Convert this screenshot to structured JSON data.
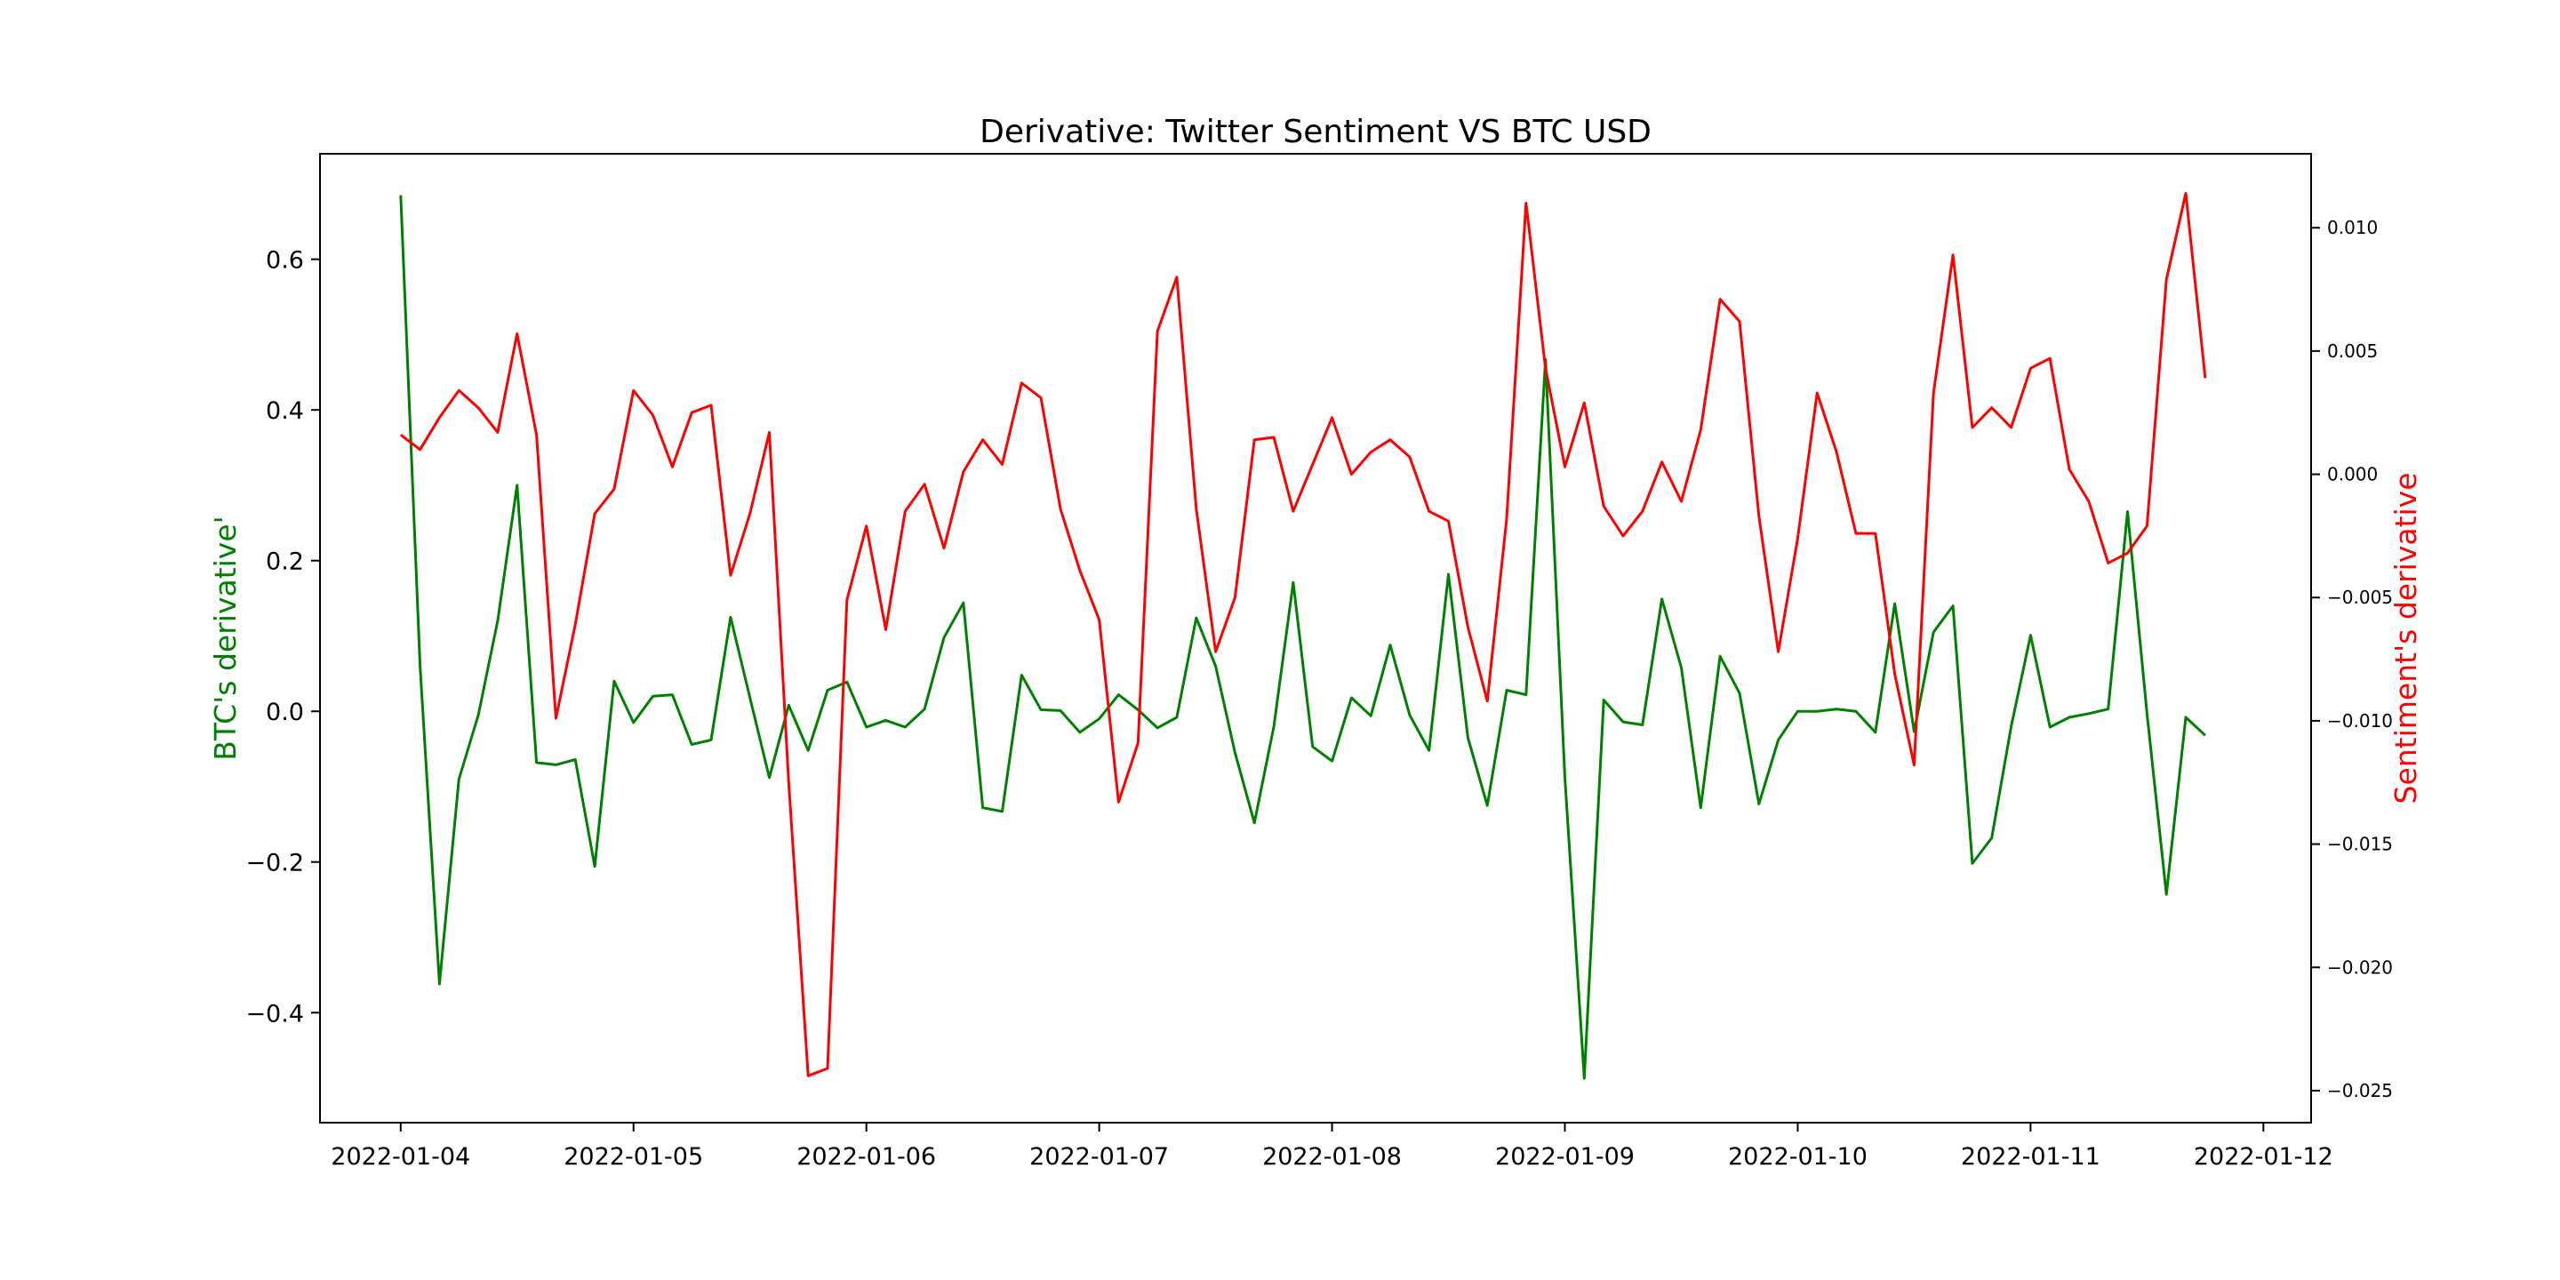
{
  "chart_data": {
    "type": "line",
    "title": "Derivative: Twitter Sentiment VS BTC USD",
    "x_start": "2022-01-04",
    "x_step_hours": 2,
    "x_ticks": [
      "2022-01-04",
      "2022-01-05",
      "2022-01-06",
      "2022-01-07",
      "2022-01-08",
      "2022-01-09",
      "2022-01-10",
      "2022-01-11",
      "2022-01-12"
    ],
    "xlim": [
      "2022-01-03T15:41:00",
      "2022-01-12T04:55:00"
    ],
    "y_left": {
      "label": "BTC's derivative'",
      "color": "#008000",
      "ylim": [
        -0.546,
        0.74
      ],
      "ticks": [
        "−0.4",
        "−0.2",
        "0.0",
        "0.2",
        "0.4",
        "0.6"
      ],
      "tick_values": [
        -0.4,
        -0.2,
        0.0,
        0.2,
        0.4,
        0.6
      ]
    },
    "y_right": {
      "label": "Sentiment's derivative",
      "color": "#ff0000",
      "ylim": [
        -0.0263,
        0.013
      ],
      "ticks": [
        "−0.025",
        "−0.020",
        "−0.015",
        "−0.010",
        "−0.005",
        "0.000",
        "0.005",
        "0.010"
      ],
      "tick_values": [
        -0.025,
        -0.02,
        -0.015,
        -0.01,
        -0.005,
        0.0,
        0.005,
        0.01
      ]
    },
    "series": [
      {
        "name": "BTC's derivative'",
        "axis": "left",
        "color": "#008000",
        "values": [
          0.685,
          0.06,
          -0.362,
          -0.09,
          -0.005,
          0.12,
          0.3,
          -0.068,
          -0.071,
          -0.064,
          -0.206,
          0.04,
          -0.015,
          0.02,
          0.022,
          -0.044,
          -0.038,
          0.125,
          0.018,
          -0.088,
          0.008,
          -0.052,
          0.028,
          0.039,
          -0.021,
          -0.012,
          -0.021,
          0.003,
          0.098,
          0.144,
          -0.128,
          -0.133,
          0.048,
          0.002,
          0.001,
          -0.028,
          -0.01,
          0.022,
          0.002,
          -0.022,
          -0.008,
          0.124,
          0.06,
          -0.055,
          -0.148,
          -0.02,
          0.171,
          -0.047,
          -0.066,
          0.018,
          -0.006,
          0.088,
          -0.005,
          -0.052,
          0.182,
          -0.035,
          -0.125,
          0.028,
          0.022,
          0.467,
          -0.088,
          -0.487,
          0.015,
          -0.014,
          -0.018,
          0.149,
          0.058,
          -0.128,
          0.073,
          0.024,
          -0.123,
          -0.038,
          0.0,
          0.0,
          0.003,
          0.0,
          -0.028,
          0.143,
          -0.027,
          0.105,
          0.14,
          -0.202,
          -0.168,
          -0.02,
          0.101,
          -0.021,
          -0.008,
          -0.003,
          0.003,
          0.265,
          -0.003,
          -0.243,
          -0.008,
          -0.032
        ]
      },
      {
        "name": "Sentiment's derivative",
        "axis": "right",
        "color": "#ff0000",
        "values": [
          0.0016,
          0.001,
          0.0023,
          0.0034,
          0.0027,
          0.0017,
          0.0057,
          0.0016,
          -0.0099,
          -0.0061,
          -0.0016,
          -0.0006,
          0.0034,
          0.0024,
          0.0003,
          0.0025,
          0.0028,
          -0.0041,
          -0.0016,
          0.0017,
          -0.0125,
          -0.0244,
          -0.0241,
          -0.0051,
          -0.0021,
          -0.0063,
          -0.0015,
          -0.0004,
          -0.003,
          0.0001,
          0.0014,
          0.0004,
          0.0037,
          0.0031,
          -0.0014,
          -0.0039,
          -0.0059,
          -0.0133,
          -0.0109,
          0.0058,
          0.008,
          -0.0014,
          -0.0072,
          -0.005,
          0.0014,
          0.0015,
          -0.0015,
          0.0004,
          0.0023,
          0.0,
          0.0009,
          0.0014,
          0.0007,
          -0.0015,
          -0.0019,
          -0.0062,
          -0.0092,
          -0.0018,
          0.011,
          0.0043,
          0.0003,
          0.0029,
          -0.0013,
          -0.0025,
          -0.0015,
          0.0005,
          -0.0011,
          0.0018,
          0.0071,
          0.0062,
          -0.0017,
          -0.0072,
          -0.0026,
          0.0033,
          0.0009,
          -0.0024,
          -0.0024,
          -0.0081,
          -0.0118,
          0.0033,
          0.0089,
          0.0019,
          0.0027,
          0.0019,
          0.0043,
          0.0047,
          0.0002,
          -0.0011,
          -0.0036,
          -0.0032,
          -0.0021,
          0.0079,
          0.0114,
          0.0039
        ]
      }
    ]
  }
}
